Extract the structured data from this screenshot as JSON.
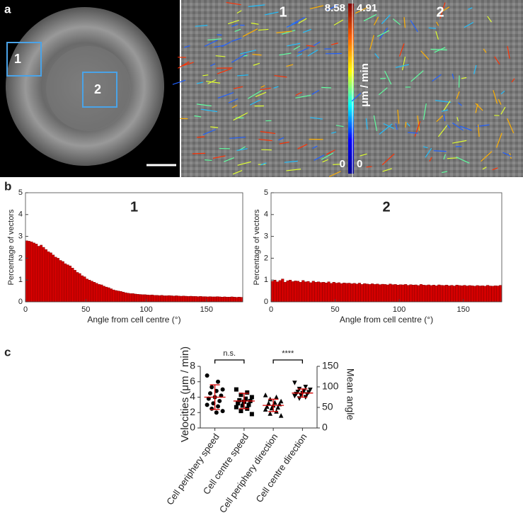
{
  "panel_labels": [
    "a",
    "b",
    "c"
  ],
  "image": {
    "region_labels": [
      "1",
      "2"
    ],
    "colorbar": {
      "label": "μm / min",
      "left_range": [
        0,
        8.58
      ],
      "right_range": [
        0,
        4.91
      ]
    }
  },
  "chart_data": [
    {
      "type": "histogram",
      "title": "1",
      "xlabel": "Angle from cell centre (°)",
      "ylabel": "Percentage of vectors",
      "color": "#d40000",
      "bins": [
        0,
        2,
        4,
        6,
        8,
        10,
        12,
        14,
        16,
        18,
        20,
        22,
        24,
        26,
        28,
        30,
        32,
        34,
        36,
        38,
        40,
        42,
        44,
        46,
        48,
        50,
        52,
        54,
        56,
        58,
        60,
        62,
        64,
        66,
        68,
        70,
        72,
        74,
        76,
        78,
        80,
        82,
        84,
        86,
        88,
        90,
        92,
        94,
        96,
        98,
        100,
        102,
        104,
        106,
        108,
        110,
        112,
        114,
        116,
        118,
        120,
        122,
        124,
        126,
        128,
        130,
        132,
        134,
        136,
        138,
        140,
        142,
        144,
        146,
        148,
        150,
        152,
        154,
        156,
        158,
        160,
        162,
        164,
        166,
        168,
        170,
        172,
        174,
        176,
        178,
        180
      ],
      "values": [
        2.8,
        2.78,
        2.75,
        2.7,
        2.65,
        2.55,
        2.6,
        2.5,
        2.4,
        2.3,
        2.25,
        2.15,
        2.05,
        2.0,
        1.9,
        1.85,
        1.75,
        1.7,
        1.65,
        1.55,
        1.45,
        1.35,
        1.3,
        1.2,
        1.15,
        1.05,
        1.0,
        0.95,
        0.9,
        0.85,
        0.8,
        0.78,
        0.72,
        0.68,
        0.65,
        0.6,
        0.55,
        0.52,
        0.5,
        0.48,
        0.45,
        0.42,
        0.4,
        0.38,
        0.38,
        0.36,
        0.35,
        0.34,
        0.33,
        0.33,
        0.32,
        0.31,
        0.32,
        0.3,
        0.3,
        0.29,
        0.3,
        0.28,
        0.28,
        0.29,
        0.28,
        0.27,
        0.28,
        0.27,
        0.26,
        0.27,
        0.26,
        0.25,
        0.26,
        0.25,
        0.25,
        0.24,
        0.25,
        0.24,
        0.24,
        0.23,
        0.24,
        0.23,
        0.23,
        0.24,
        0.23,
        0.22,
        0.23,
        0.22,
        0.22,
        0.23,
        0.22,
        0.21,
        0.22,
        0.21
      ],
      "xlim": [
        0,
        180
      ],
      "xticks": [
        0,
        50,
        100,
        150
      ],
      "ylim": [
        0,
        5
      ],
      "yticks": [
        0,
        1,
        2,
        3,
        4,
        5
      ]
    },
    {
      "type": "histogram",
      "title": "2",
      "xlabel": "Angle from cell centre (°)",
      "ylabel": "Percentage of vectors",
      "color": "#d40000",
      "bins": [
        0,
        2,
        4,
        6,
        8,
        10,
        12,
        14,
        16,
        18,
        20,
        22,
        24,
        26,
        28,
        30,
        32,
        34,
        36,
        38,
        40,
        42,
        44,
        46,
        48,
        50,
        52,
        54,
        56,
        58,
        60,
        62,
        64,
        66,
        68,
        70,
        72,
        74,
        76,
        78,
        80,
        82,
        84,
        86,
        88,
        90,
        92,
        94,
        96,
        98,
        100,
        102,
        104,
        106,
        108,
        110,
        112,
        114,
        116,
        118,
        120,
        122,
        124,
        126,
        128,
        130,
        132,
        134,
        136,
        138,
        140,
        142,
        144,
        146,
        148,
        150,
        152,
        154,
        156,
        158,
        160,
        162,
        164,
        166,
        168,
        170,
        172,
        174,
        176,
        178,
        180
      ],
      "values": [
        0.95,
        1.0,
        0.92,
        0.98,
        1.05,
        0.9,
        0.97,
        1.0,
        0.93,
        0.96,
        0.95,
        0.9,
        0.98,
        0.92,
        0.94,
        0.88,
        0.95,
        0.9,
        0.92,
        0.89,
        0.9,
        0.87,
        0.92,
        0.85,
        0.9,
        0.86,
        0.88,
        0.84,
        0.87,
        0.85,
        0.86,
        0.83,
        0.85,
        0.82,
        0.86,
        0.8,
        0.84,
        0.82,
        0.8,
        0.83,
        0.8,
        0.82,
        0.79,
        0.81,
        0.8,
        0.78,
        0.82,
        0.79,
        0.8,
        0.77,
        0.79,
        0.78,
        0.8,
        0.76,
        0.79,
        0.77,
        0.78,
        0.75,
        0.8,
        0.77,
        0.76,
        0.78,
        0.75,
        0.77,
        0.74,
        0.78,
        0.76,
        0.75,
        0.77,
        0.74,
        0.76,
        0.73,
        0.77,
        0.75,
        0.74,
        0.76,
        0.73,
        0.75,
        0.74,
        0.72,
        0.75,
        0.73,
        0.74,
        0.72,
        0.76,
        0.73,
        0.72,
        0.74,
        0.73,
        0.76
      ],
      "xlim": [
        0,
        180
      ],
      "xticks": [
        0,
        50,
        100,
        150
      ],
      "ylim": [
        0,
        5
      ],
      "yticks": [
        0,
        1,
        2,
        3,
        4,
        5
      ]
    },
    {
      "type": "dotplot",
      "ylabel": "Velocities (μm / min)",
      "y2label": "Mean angle",
      "categories": [
        "Cell periphery speed",
        "Cell centre speed",
        "Cell periphery direction",
        "Cell centre direction"
      ],
      "ylim": [
        0,
        8
      ],
      "yticks": [
        0,
        2,
        4,
        6,
        8
      ],
      "y2lim": [
        0,
        150
      ],
      "y2ticks": [
        0,
        50,
        100,
        150
      ],
      "marker_color": "#000000",
      "summary_color": "#d40000",
      "groups": [
        {
          "marker": "circle",
          "axis": "y",
          "values": [
            6.8,
            6.0,
            5.3,
            5.0,
            4.8,
            4.5,
            4.2,
            4.0,
            3.8,
            3.5,
            3.2,
            3.0,
            2.8,
            2.5,
            2.2,
            2.0
          ],
          "mean": 4.0,
          "sd": 1.6
        },
        {
          "marker": "square",
          "axis": "y",
          "values": [
            5.0,
            4.6,
            4.3,
            4.0,
            3.8,
            3.6,
            3.5,
            3.4,
            3.2,
            3.0,
            2.9,
            2.7,
            2.5,
            2.2,
            1.8
          ],
          "mean": 3.5,
          "sd": 1.0
        },
        {
          "marker": "triangle-up",
          "axis": "y2",
          "values": [
            80,
            75,
            70,
            65,
            62,
            60,
            58,
            55,
            52,
            50,
            48,
            45,
            40,
            35,
            30
          ],
          "mean": 55,
          "sd": 15
        },
        {
          "marker": "triangle-down",
          "axis": "y2",
          "values": [
            110,
            100,
            95,
            93,
            90,
            88,
            87,
            85,
            83,
            82,
            80,
            78,
            75,
            72
          ],
          "mean": 85,
          "sd": 10
        }
      ],
      "brackets": [
        {
          "label": "n.s."
        },
        {
          "label": "****"
        }
      ]
    }
  ]
}
